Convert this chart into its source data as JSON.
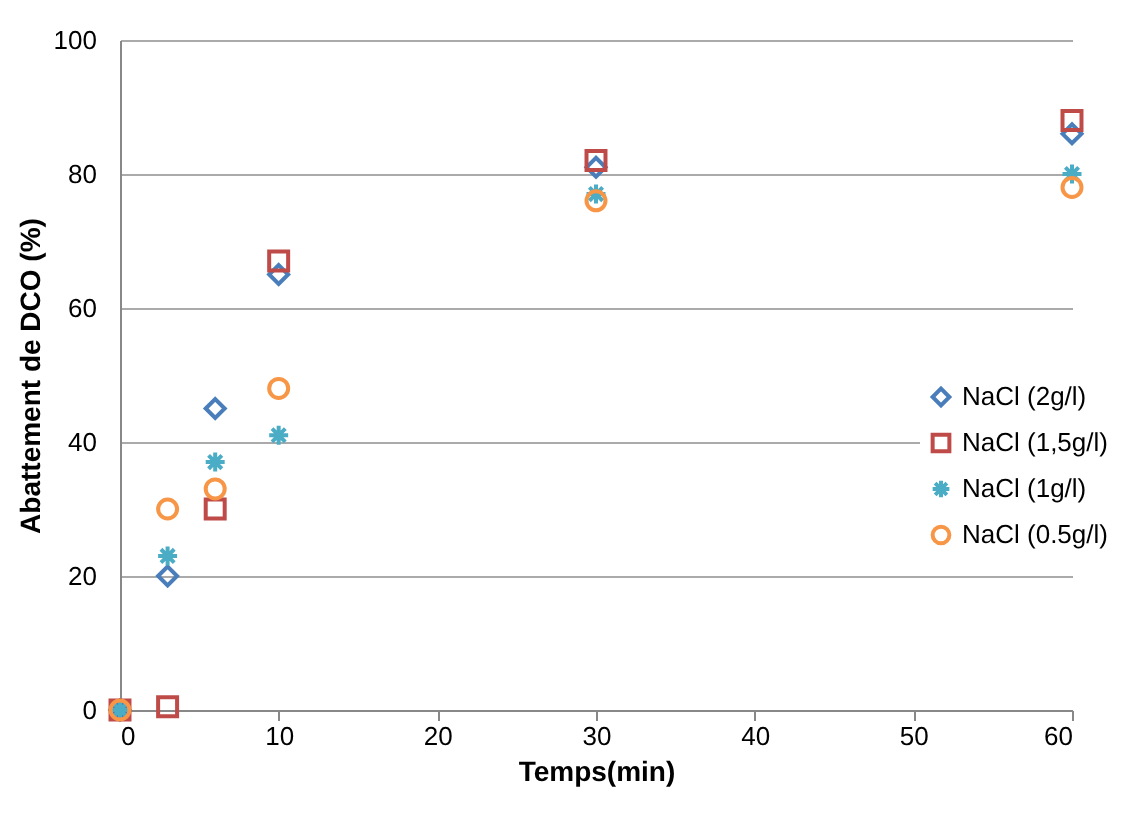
{
  "chart_data": {
    "type": "scatter",
    "xlabel": "Temps(min)",
    "ylabel": "Abattement de DCO (%)",
    "x": [
      0,
      3,
      6,
      10,
      30,
      60
    ],
    "series": [
      {
        "name": "NaCl (2g/l)",
        "color": "#4a7ebb",
        "marker": "diamond",
        "values": [
          0,
          20,
          45,
          65,
          81,
          86
        ]
      },
      {
        "name": "NaCl (1,5g/l)",
        "color": "#be4b48",
        "marker": "square",
        "values": [
          0,
          0.5,
          30,
          67,
          82,
          88
        ]
      },
      {
        "name": "NaCl (1g/l)",
        "color": "#4bacc6",
        "marker": "cross",
        "values": [
          0,
          23,
          37,
          41,
          77,
          80
        ]
      },
      {
        "name": "NaCl (0.5g/l)",
        "color": "#f79646",
        "marker": "circle",
        "values": [
          0,
          30,
          33,
          48,
          76,
          78
        ]
      }
    ],
    "xlim": [
      0,
      60
    ],
    "xticks": [
      0,
      10,
      20,
      30,
      40,
      50,
      60
    ],
    "ylim": [
      0,
      100
    ],
    "yticks": [
      0,
      20,
      40,
      60,
      80,
      100
    ],
    "grid": "y",
    "legend": "right"
  }
}
